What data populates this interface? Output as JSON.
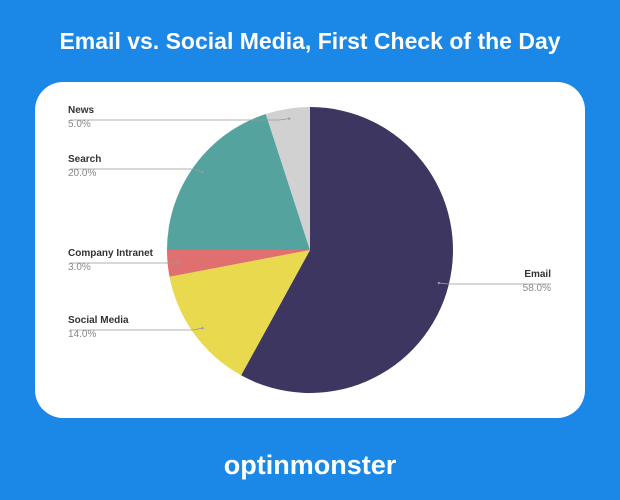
{
  "chart_data": {
    "type": "pie",
    "title": "Email vs. Social Media, First Check of the Day",
    "categories": [
      "Email",
      "Social Media",
      "Company Intranet",
      "Search",
      "News"
    ],
    "values": [
      58,
      14,
      3,
      20,
      5
    ],
    "value_labels": [
      "58.0%",
      "14.0%",
      "3.0%",
      "20.0%",
      "5.0%"
    ],
    "colors": [
      "#3d3660",
      "#e8d94f",
      "#e07070",
      "#55a39f",
      "#d1d1d1"
    ]
  },
  "logo": "optinmonster"
}
